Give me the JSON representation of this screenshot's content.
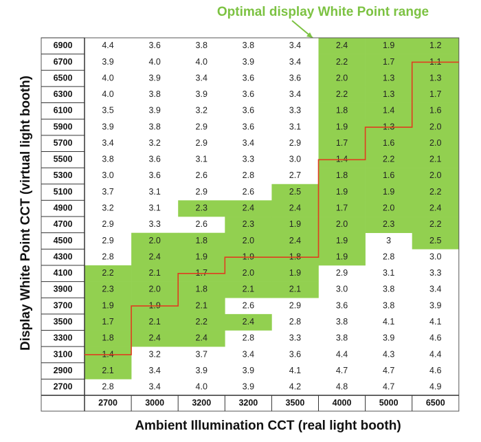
{
  "title": "Optimal display White Point range",
  "x_axis_label": "Ambient Illumination CCT (real light booth)",
  "y_axis_label": "Display White Point CCT (virtual light booth)",
  "highlight_color": "#92d050",
  "line_color": "#e03c1f",
  "table": {
    "columns": [
      "2700",
      "3000",
      "3200",
      "3200",
      "3500",
      "4000",
      "5000",
      "6500"
    ],
    "rows": [
      {
        "label": "6900",
        "cells": [
          "4.4",
          "3.6",
          "3.8",
          "3.8",
          "3.4",
          "2.4",
          "1.9",
          "1.2"
        ],
        "highlighted": [
          false,
          false,
          false,
          false,
          false,
          true,
          true,
          true
        ]
      },
      {
        "label": "6700",
        "cells": [
          "3.9",
          "4.0",
          "4.0",
          "3.9",
          "3.4",
          "2.2",
          "1.7",
          "1.1"
        ],
        "highlighted": [
          false,
          false,
          false,
          false,
          false,
          true,
          true,
          true
        ]
      },
      {
        "label": "6500",
        "cells": [
          "4.0",
          "3.9",
          "3.4",
          "3.6",
          "3.6",
          "2.0",
          "1.3",
          "1.3"
        ],
        "highlighted": [
          false,
          false,
          false,
          false,
          false,
          true,
          true,
          true
        ]
      },
      {
        "label": "6300",
        "cells": [
          "4.0",
          "3.8",
          "3.9",
          "3.6",
          "3.4",
          "2.2",
          "1.3",
          "1.7"
        ],
        "highlighted": [
          false,
          false,
          false,
          false,
          false,
          true,
          true,
          true
        ]
      },
      {
        "label": "6100",
        "cells": [
          "3.5",
          "3.9",
          "3.2",
          "3.6",
          "3.3",
          "1.8",
          "1.4",
          "1.6"
        ],
        "highlighted": [
          false,
          false,
          false,
          false,
          false,
          true,
          true,
          true
        ]
      },
      {
        "label": "5900",
        "cells": [
          "3.9",
          "3.8",
          "2.9",
          "3.6",
          "3.1",
          "1.9",
          "1.3",
          "2.0"
        ],
        "highlighted": [
          false,
          false,
          false,
          false,
          false,
          true,
          true,
          true
        ]
      },
      {
        "label": "5700",
        "cells": [
          "3.4",
          "3.2",
          "2.9",
          "3.4",
          "2.9",
          "1.7",
          "1.6",
          "2.0"
        ],
        "highlighted": [
          false,
          false,
          false,
          false,
          false,
          true,
          true,
          true
        ]
      },
      {
        "label": "5500",
        "cells": [
          "3.8",
          "3.6",
          "3.1",
          "3.3",
          "3.0",
          "1.4",
          "2.2",
          "2.1"
        ],
        "highlighted": [
          false,
          false,
          false,
          false,
          false,
          true,
          true,
          true
        ]
      },
      {
        "label": "5300",
        "cells": [
          "3.0",
          "3.6",
          "2.6",
          "2.8",
          "2.7",
          "1.8",
          "1.6",
          "2.0"
        ],
        "highlighted": [
          false,
          false,
          false,
          false,
          false,
          true,
          true,
          true
        ]
      },
      {
        "label": "5100",
        "cells": [
          "3.7",
          "3.1",
          "2.9",
          "2.6",
          "2.5",
          "1.9",
          "1.9",
          "2.2"
        ],
        "highlighted": [
          false,
          false,
          false,
          false,
          true,
          true,
          true,
          true
        ]
      },
      {
        "label": "4900",
        "cells": [
          "3.2",
          "3.1",
          "2.3",
          "2.4",
          "2.4",
          "1.7",
          "2.0",
          "2.4"
        ],
        "highlighted": [
          false,
          false,
          true,
          true,
          true,
          true,
          true,
          true
        ]
      },
      {
        "label": "4700",
        "cells": [
          "2.9",
          "3.3",
          "2.6",
          "2.3",
          "1.9",
          "2.0",
          "2.3",
          "2.2"
        ],
        "highlighted": [
          false,
          false,
          false,
          true,
          true,
          true,
          true,
          true
        ]
      },
      {
        "label": "4500",
        "cells": [
          "2.9",
          "2.0",
          "1.8",
          "2.0",
          "2.4",
          "1.9",
          "3",
          "2.5"
        ],
        "highlighted": [
          false,
          true,
          true,
          true,
          true,
          true,
          false,
          true
        ]
      },
      {
        "label": "4300",
        "cells": [
          "2.8",
          "2.4",
          "1.9",
          "1.9",
          "1.8",
          "1.9",
          "2.8",
          "3.0"
        ],
        "highlighted": [
          false,
          true,
          true,
          true,
          true,
          true,
          false,
          false
        ]
      },
      {
        "label": "4100",
        "cells": [
          "2.2",
          "2.1",
          "1.7",
          "2.0",
          "1.9",
          "2.9",
          "3.1",
          "3.3"
        ],
        "highlighted": [
          true,
          true,
          true,
          true,
          true,
          false,
          false,
          false
        ]
      },
      {
        "label": "3900",
        "cells": [
          "2.3",
          "2.0",
          "1.8",
          "2.1",
          "2.1",
          "3.0",
          "3.8",
          "3.4"
        ],
        "highlighted": [
          true,
          true,
          true,
          true,
          true,
          false,
          false,
          false
        ]
      },
      {
        "label": "3700",
        "cells": [
          "1.9",
          "1.9",
          "2.1",
          "2.6",
          "2.9",
          "3.6",
          "3.8",
          "3.9"
        ],
        "highlighted": [
          true,
          true,
          true,
          false,
          false,
          false,
          false,
          false
        ]
      },
      {
        "label": "3500",
        "cells": [
          "1.7",
          "2.1",
          "2.2",
          "2.4",
          "2.8",
          "3.8",
          "4.1",
          "4.1"
        ],
        "highlighted": [
          true,
          true,
          true,
          true,
          false,
          false,
          false,
          false
        ]
      },
      {
        "label": "3300",
        "cells": [
          "1.8",
          "2.4",
          "2.4",
          "2.8",
          "3.3",
          "3.8",
          "3.9",
          "4.6"
        ],
        "highlighted": [
          true,
          true,
          true,
          false,
          false,
          false,
          false,
          false
        ]
      },
      {
        "label": "3100",
        "cells": [
          "1.4",
          "3.2",
          "3.7",
          "3.4",
          "3.6",
          "4.4",
          "4.3",
          "4.4"
        ],
        "highlighted": [
          true,
          false,
          false,
          false,
          false,
          false,
          false,
          false
        ]
      },
      {
        "label": "2900",
        "cells": [
          "2.1",
          "3.4",
          "3.9",
          "3.9",
          "4.1",
          "4.7",
          "4.7",
          "4.6"
        ],
        "highlighted": [
          true,
          false,
          false,
          false,
          false,
          false,
          false,
          false
        ]
      },
      {
        "label": "2700",
        "cells": [
          "2.8",
          "3.4",
          "4.0",
          "3.9",
          "4.2",
          "4.8",
          "4.7",
          "4.9"
        ],
        "highlighted": [
          false,
          false,
          false,
          false,
          false,
          false,
          false,
          false
        ]
      }
    ]
  }
}
